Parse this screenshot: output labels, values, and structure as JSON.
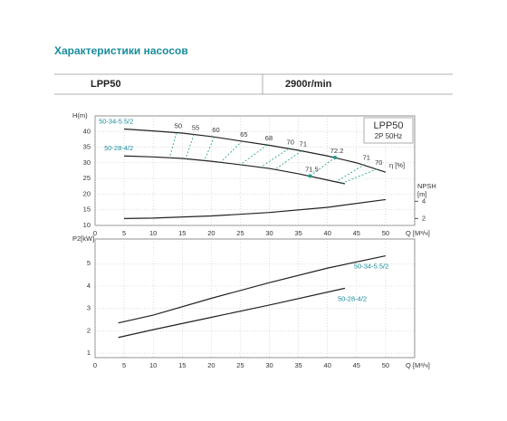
{
  "header": {
    "title": "Характеристики насосов"
  },
  "table": {
    "model": "LPP50",
    "speed": "2900r/min"
  },
  "chart_data": [
    {
      "type": "line",
      "box_title": "LPP50",
      "box_subtitle": "2P  50Hz",
      "ylabel": "H(m)",
      "y2label": [
        "NPSH",
        "[m]"
      ],
      "xlabel": "Q [M³/ч]",
      "eta_label": "η [%]",
      "xlim": [
        0,
        55
      ],
      "xticks": [
        0,
        5,
        10,
        15,
        20,
        25,
        30,
        35,
        40,
        45,
        50
      ],
      "ylim": [
        10,
        45
      ],
      "yticks": [
        10,
        15,
        20,
        25,
        30,
        35,
        40
      ],
      "y2lim": [
        1.2,
        13.9
      ],
      "y2ticks": [
        2,
        4
      ],
      "grid": true,
      "series": [
        {
          "name": "50-34-5.5/2",
          "color": "#222222",
          "label_color": "#1a8c9c",
          "x": [
            5,
            10,
            15,
            20,
            25,
            30,
            35,
            40,
            45,
            50
          ],
          "values": [
            40.8,
            40.2,
            39.5,
            38.4,
            37,
            35.6,
            34,
            32.2,
            30,
            27
          ]
        },
        {
          "name": "50-28-4/2",
          "color": "#222222",
          "label_color": "#1a8c9c",
          "x": [
            5,
            10,
            15,
            20,
            25,
            30,
            35,
            40,
            43
          ],
          "values": [
            32.2,
            31.9,
            31.4,
            30.5,
            29.4,
            28.2,
            26.5,
            24.5,
            23.3
          ]
        },
        {
          "color": "#222222",
          "axis": "y2",
          "x": [
            5,
            10,
            20,
            30,
            40,
            50
          ],
          "values": [
            2.0,
            2.05,
            2.3,
            2.7,
            3.3,
            4.2
          ]
        }
      ],
      "eff_color": "#1a9c8c",
      "efficiency": [
        {
          "value": 50,
          "x": [
            14,
            12.8
          ],
          "y": [
            39.6,
            31.6
          ]
        },
        {
          "value": 55,
          "x": [
            17,
            15.6
          ],
          "y": [
            39.1,
            31.3
          ]
        },
        {
          "value": 60,
          "x": [
            20.5,
            18.8
          ],
          "y": [
            38.3,
            30.7
          ]
        },
        {
          "value": 65,
          "x": [
            25.3,
            21.6
          ],
          "y": [
            36.9,
            30.2
          ]
        },
        {
          "value": 68,
          "x": [
            29.6,
            25
          ],
          "y": [
            35.7,
            29.4
          ]
        },
        {
          "value": 70,
          "x": [
            33.3,
            28.5
          ],
          "y": [
            34.5,
            28.6
          ]
        },
        {
          "value": 71,
          "x": [
            35.5,
            31
          ],
          "y": [
            33.8,
            27.9
          ]
        },
        {
          "value": 71,
          "x": [
            46.4,
            41.5
          ],
          "y": [
            29.5,
            24
          ]
        },
        {
          "value": 70,
          "x": [
            48.5,
            42.5
          ],
          "y": [
            28,
            23.5
          ]
        }
      ],
      "eff_points": [
        {
          "value": 72.2,
          "x": 41.3,
          "y": 31.7
        },
        {
          "value": 71.5,
          "x": 37,
          "y": 25.8
        }
      ]
    },
    {
      "type": "line",
      "ylabel": "P2[kW]",
      "xlabel": "Q [M³/ч]",
      "xlim": [
        0,
        55
      ],
      "xticks": [
        0,
        5,
        10,
        15,
        20,
        25,
        30,
        35,
        40,
        45,
        50
      ],
      "ylim": [
        0.8,
        6.1
      ],
      "yticks": [
        1,
        2,
        3,
        4,
        5
      ],
      "grid": true,
      "series": [
        {
          "name": "50-34-5.5/2",
          "color": "#222222",
          "label_color": "#1a8c9c",
          "x": [
            4,
            10,
            20,
            30,
            40,
            50
          ],
          "values": [
            2.35,
            2.7,
            3.45,
            4.15,
            4.8,
            5.35
          ]
        },
        {
          "name": "50-28-4/2",
          "color": "#222222",
          "label_color": "#1a8c9c",
          "x": [
            4,
            10,
            20,
            30,
            43
          ],
          "values": [
            1.7,
            2.05,
            2.6,
            3.15,
            3.9
          ]
        }
      ]
    }
  ]
}
